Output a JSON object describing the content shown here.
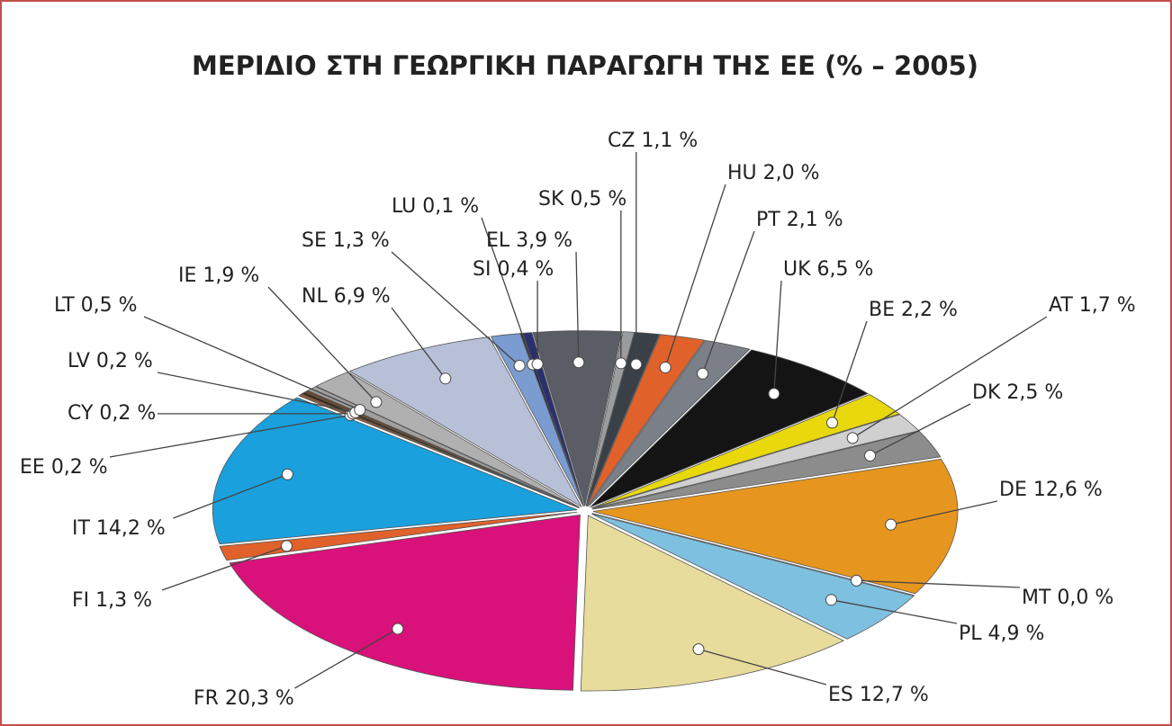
{
  "chart_data": {
    "type": "pie",
    "title": "ΜΕΡΙΔΙΟ ΣΤΗ ΓΕΩΡΓΙΚΗ ΠΑΡΑΓΩΓΗ ΤΗΣ ΕΕ (% – 2005)",
    "categories": [
      "LU",
      "SI",
      "EL",
      "SK",
      "CZ",
      "HU",
      "PT",
      "UK",
      "BE",
      "AT",
      "DK",
      "DE",
      "MT",
      "PL",
      "ES",
      "FR",
      "FI",
      "IT",
      "EE",
      "CY",
      "LV",
      "LT",
      "IE",
      "NL",
      "SE"
    ],
    "values": [
      0.1,
      0.4,
      3.9,
      0.5,
      1.1,
      2.0,
      2.1,
      6.5,
      2.2,
      1.7,
      2.5,
      12.6,
      0.0,
      4.9,
      12.7,
      20.3,
      1.3,
      14.2,
      0.2,
      0.2,
      0.2,
      0.5,
      1.9,
      6.9,
      1.3
    ],
    "value_labels": [
      "0,1 %",
      "0,4 %",
      "3,9 %",
      "0,5 %",
      "1,1 %",
      "2,0 %",
      "2,1 %",
      "6,5 %",
      "2,2 %",
      "1,7 %",
      "2,5 %",
      "12,6 %",
      "0,0 %",
      "4,9 %",
      "12,7 %",
      "20,3 %",
      "1,3 %",
      "14,2 %",
      "0,2 %",
      "0,2 %",
      "0,2 %",
      "0,5 %",
      "1,9 %",
      "6,9 %",
      "1,3 %"
    ],
    "colors": [
      "#1a1a3a",
      "#2a2f6e",
      "#5a5d66",
      "#9a9ca0",
      "#3a4048",
      "#e0622a",
      "#7a7f88",
      "#141414",
      "#e8d80c",
      "#d0d0d0",
      "#8c8c8c",
      "#e6961e",
      "#ffffff",
      "#7ec0e0",
      "#e8dc9c",
      "#d8127a",
      "#e0622a",
      "#1aa0dc",
      "#8a5a3a",
      "#3a2a1a",
      "#6a4a2a",
      "#a0a0a0",
      "#b0b0b0",
      "#b8c0d8",
      "#7a9cd0"
    ]
  }
}
